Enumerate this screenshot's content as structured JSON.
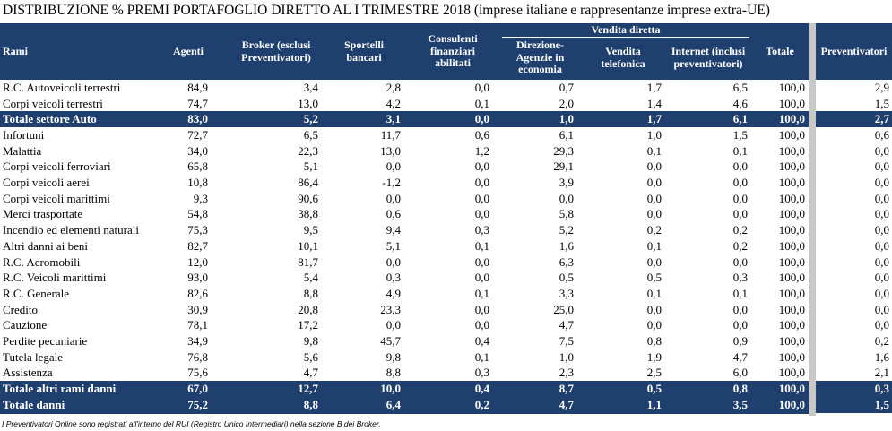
{
  "title": "DISTRIBUZIONE % PREMI PORTAFOGLIO DIRETTO AL I TRIMESTRE 2018 (imprese italiane e rappresentanze imprese extra-UE)",
  "group_header": "Vendita diretta",
  "columns": {
    "rami": "Rami",
    "agenti": "Agenti",
    "broker": "Broker (esclusi Preventivatori)",
    "sportelli": "Sportelli bancari",
    "consulenti": "Consulenti finanziari abilitati",
    "direzione": "Direzione-Agenzie in economia",
    "vendita": "Vendita telefonica",
    "internet": "Internet (inclusi preventivatori)",
    "totale": "Totale",
    "preventivatori": "Preventivatori"
  },
  "rows": [
    {
      "type": "reg",
      "ramo": "R.C. Autoveicoli terrestri",
      "agenti": "84,9",
      "broker": "3,4",
      "sportelli": "2,8",
      "consulenti": "0,0",
      "direzione": "0,7",
      "vendita": "1,7",
      "internet": "6,5",
      "totale": "100,0",
      "preventivatori": "2,9"
    },
    {
      "type": "reg",
      "ramo": "Corpi veicoli terrestri",
      "agenti": "74,7",
      "broker": "13,0",
      "sportelli": "4,2",
      "consulenti": "0,1",
      "direzione": "2,0",
      "vendita": "1,4",
      "internet": "4,6",
      "totale": "100,0",
      "preventivatori": "1,5"
    },
    {
      "type": "tot",
      "ramo": "Totale settore Auto",
      "agenti": "83,0",
      "broker": "5,2",
      "sportelli": "3,1",
      "consulenti": "0,0",
      "direzione": "1,0",
      "vendita": "1,7",
      "internet": "6,1",
      "totale": "100,0",
      "preventivatori": "2,7"
    },
    {
      "type": "reg",
      "ramo": "Infortuni",
      "agenti": "72,7",
      "broker": "6,5",
      "sportelli": "11,7",
      "consulenti": "0,6",
      "direzione": "6,1",
      "vendita": "1,0",
      "internet": "1,5",
      "totale": "100,0",
      "preventivatori": "0,6"
    },
    {
      "type": "reg",
      "ramo": "Malattia",
      "agenti": "34,0",
      "broker": "22,3",
      "sportelli": "13,0",
      "consulenti": "1,2",
      "direzione": "29,3",
      "vendita": "0,1",
      "internet": "0,1",
      "totale": "100,0",
      "preventivatori": "0,0"
    },
    {
      "type": "reg",
      "ramo": "Corpi veicoli ferroviari",
      "agenti": "65,8",
      "broker": "5,1",
      "sportelli": "0,0",
      "consulenti": "0,0",
      "direzione": "29,1",
      "vendita": "0,0",
      "internet": "0,0",
      "totale": "100,0",
      "preventivatori": "0,0"
    },
    {
      "type": "reg",
      "ramo": "Corpi veicoli aerei",
      "agenti": "10,8",
      "broker": "86,4",
      "sportelli": "-1,2",
      "consulenti": "0,0",
      "direzione": "3,9",
      "vendita": "0,0",
      "internet": "0,0",
      "totale": "100,0",
      "preventivatori": "0,0"
    },
    {
      "type": "reg",
      "ramo": "Corpi veicoli marittimi",
      "agenti": "9,3",
      "broker": "90,6",
      "sportelli": "0,0",
      "consulenti": "0,0",
      "direzione": "0,0",
      "vendita": "0,0",
      "internet": "0,0",
      "totale": "100,0",
      "preventivatori": "0,0"
    },
    {
      "type": "reg",
      "ramo": "Merci trasportate",
      "agenti": "54,8",
      "broker": "38,8",
      "sportelli": "0,6",
      "consulenti": "0,0",
      "direzione": "5,8",
      "vendita": "0,0",
      "internet": "0,0",
      "totale": "100,0",
      "preventivatori": "0,0"
    },
    {
      "type": "reg",
      "ramo": "Incendio ed elementi naturali",
      "agenti": "75,3",
      "broker": "9,5",
      "sportelli": "9,4",
      "consulenti": "0,3",
      "direzione": "5,2",
      "vendita": "0,2",
      "internet": "0,2",
      "totale": "100,0",
      "preventivatori": "0,0"
    },
    {
      "type": "reg",
      "ramo": "Altri danni ai beni",
      "agenti": "82,7",
      "broker": "10,1",
      "sportelli": "5,1",
      "consulenti": "0,1",
      "direzione": "1,6",
      "vendita": "0,1",
      "internet": "0,2",
      "totale": "100,0",
      "preventivatori": "0,0"
    },
    {
      "type": "reg",
      "ramo": "R.C. Aeromobili",
      "agenti": "12,0",
      "broker": "81,7",
      "sportelli": "0,0",
      "consulenti": "0,0",
      "direzione": "6,3",
      "vendita": "0,0",
      "internet": "0,0",
      "totale": "100,0",
      "preventivatori": "0,0"
    },
    {
      "type": "reg",
      "ramo": "R.C. Veicoli marittimi",
      "agenti": "93,0",
      "broker": "5,4",
      "sportelli": "0,3",
      "consulenti": "0,0",
      "direzione": "0,5",
      "vendita": "0,5",
      "internet": "0,3",
      "totale": "100,0",
      "preventivatori": "0,0"
    },
    {
      "type": "reg",
      "ramo": "R.C. Generale",
      "agenti": "82,6",
      "broker": "8,8",
      "sportelli": "4,9",
      "consulenti": "0,1",
      "direzione": "3,3",
      "vendita": "0,1",
      "internet": "0,1",
      "totale": "100,0",
      "preventivatori": "0,0"
    },
    {
      "type": "reg",
      "ramo": "Credito",
      "agenti": "30,9",
      "broker": "20,8",
      "sportelli": "23,3",
      "consulenti": "0,0",
      "direzione": "25,0",
      "vendita": "0,0",
      "internet": "0,0",
      "totale": "100,0",
      "preventivatori": "0,0"
    },
    {
      "type": "reg",
      "ramo": "Cauzione",
      "agenti": "78,1",
      "broker": "17,2",
      "sportelli": "0,0",
      "consulenti": "0,0",
      "direzione": "4,7",
      "vendita": "0,0",
      "internet": "0,0",
      "totale": "100,0",
      "preventivatori": "0,0"
    },
    {
      "type": "reg",
      "ramo": "Perdite pecuniarie",
      "agenti": "34,9",
      "broker": "9,8",
      "sportelli": "45,7",
      "consulenti": "0,4",
      "direzione": "7,5",
      "vendita": "0,8",
      "internet": "0,9",
      "totale": "100,0",
      "preventivatori": "0,2"
    },
    {
      "type": "reg",
      "ramo": "Tutela legale",
      "agenti": "76,8",
      "broker": "5,6",
      "sportelli": "9,8",
      "consulenti": "0,1",
      "direzione": "1,0",
      "vendita": "1,9",
      "internet": "4,7",
      "totale": "100,0",
      "preventivatori": "1,6"
    },
    {
      "type": "reg",
      "ramo": "Assistenza",
      "agenti": "75,6",
      "broker": "4,7",
      "sportelli": "8,8",
      "consulenti": "0,3",
      "direzione": "2,3",
      "vendita": "2,5",
      "internet": "6,0",
      "totale": "100,0",
      "preventivatori": "2,1"
    },
    {
      "type": "tot",
      "ramo": "Totale altri rami danni",
      "agenti": "67,0",
      "broker": "12,7",
      "sportelli": "10,0",
      "consulenti": "0,4",
      "direzione": "8,7",
      "vendita": "0,5",
      "internet": "0,8",
      "totale": "100,0",
      "preventivatori": "0,3"
    },
    {
      "type": "tot",
      "ramo": "Totale danni",
      "agenti": "75,2",
      "broker": "8,8",
      "sportelli": "6,4",
      "consulenti": "0,2",
      "direzione": "4,7",
      "vendita": "1,1",
      "internet": "3,5",
      "totale": "100,0",
      "preventivatori": "1,5"
    }
  ],
  "footnote": "I Preventivatori Online sono registrati all'interno del RUI (Registro Unico Intermediari) nella sezione B dei Broker."
}
